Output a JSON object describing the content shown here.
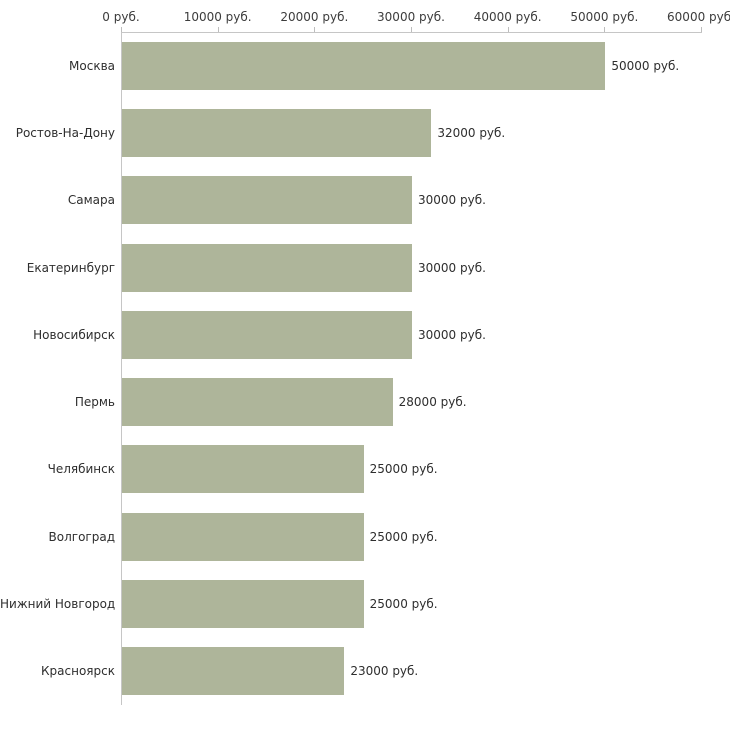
{
  "chart_data": {
    "type": "bar",
    "orientation": "horizontal",
    "title": "",
    "xlabel": "",
    "ylabel": "",
    "xlim": [
      0,
      60000
    ],
    "grid": false,
    "legend": false,
    "bar_color": "#aeb59a",
    "categories": [
      "Москва",
      "Ростов-На-Дону",
      "Самара",
      "Екатеринбург",
      "Новосибирск",
      "Пермь",
      "Челябинск",
      "Волгоград",
      "Нижний Новгород",
      "Красноярск"
    ],
    "values": [
      50000,
      32000,
      30000,
      30000,
      30000,
      28000,
      25000,
      25000,
      25000,
      23000
    ],
    "value_labels": [
      "50000 руб.",
      "32000 руб.",
      "30000 руб.",
      "30000 руб.",
      "30000 руб.",
      "28000 руб.",
      "25000 руб.",
      "25000 руб.",
      "25000 руб.",
      "23000 руб."
    ],
    "x_ticks": [
      0,
      10000,
      20000,
      30000,
      40000,
      50000,
      60000
    ],
    "x_tick_labels": [
      "0 руб.",
      "10000 руб.",
      "20000 руб.",
      "30000 руб.",
      "40000 руб.",
      "50000 руб.",
      "60000 руб."
    ]
  }
}
